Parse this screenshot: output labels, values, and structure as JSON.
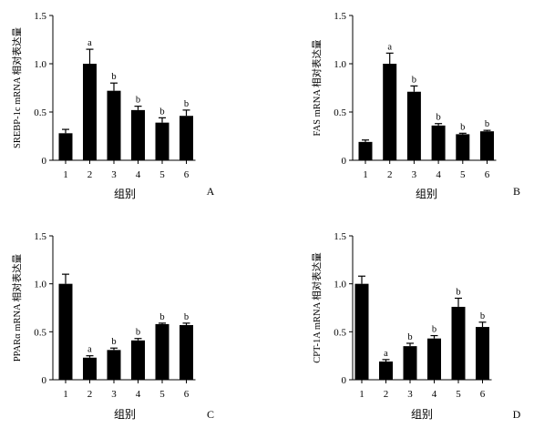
{
  "chart_data": [
    {
      "type": "bar",
      "panel_label": "A",
      "categories": [
        "1",
        "2",
        "3",
        "4",
        "5",
        "6"
      ],
      "values": [
        0.28,
        1.0,
        0.72,
        0.52,
        0.39,
        0.46
      ],
      "errors": [
        0.04,
        0.15,
        0.08,
        0.04,
        0.05,
        0.06
      ],
      "annotations": [
        "",
        "a",
        "b",
        "b",
        "b",
        "b"
      ],
      "ylabel": "SREBP-1c mRNA 相对表达量",
      "xlabel": "组别",
      "ylim": [
        0,
        1.5
      ],
      "yticks": [
        "0",
        "0.5",
        "1.0",
        "1.5"
      ],
      "grid": false
    },
    {
      "type": "bar",
      "panel_label": "B",
      "categories": [
        "1",
        "2",
        "3",
        "4",
        "5",
        "6"
      ],
      "values": [
        0.19,
        1.0,
        0.71,
        0.36,
        0.27,
        0.3
      ],
      "errors": [
        0.02,
        0.11,
        0.06,
        0.02,
        0.01,
        0.01
      ],
      "annotations": [
        "",
        "a",
        "b",
        "b",
        "b",
        "b"
      ],
      "ylabel": "FAS mRNA 相对表达量",
      "xlabel": "组别",
      "ylim": [
        0,
        1.5
      ],
      "yticks": [
        "0",
        "0.5",
        "1.0",
        "1.5"
      ],
      "grid": false
    },
    {
      "type": "bar",
      "panel_label": "C",
      "categories": [
        "1",
        "2",
        "3",
        "4",
        "5",
        "6"
      ],
      "values": [
        1.0,
        0.23,
        0.31,
        0.41,
        0.58,
        0.57
      ],
      "errors": [
        0.1,
        0.02,
        0.02,
        0.02,
        0.01,
        0.02
      ],
      "annotations": [
        "",
        "a",
        "b",
        "b",
        "b",
        "b"
      ],
      "ylabel": "PPARα mRNA 相对表达量",
      "xlabel": "组别",
      "ylim": [
        0,
        1.5
      ],
      "yticks": [
        "0",
        "0.5",
        "1.0",
        "1.5"
      ],
      "grid": false
    },
    {
      "type": "bar",
      "panel_label": "D",
      "categories": [
        "1",
        "2",
        "3",
        "4",
        "5",
        "6"
      ],
      "values": [
        1.0,
        0.19,
        0.35,
        0.43,
        0.76,
        0.55
      ],
      "errors": [
        0.08,
        0.02,
        0.03,
        0.03,
        0.09,
        0.05
      ],
      "annotations": [
        "",
        "a",
        "b",
        "b",
        "b",
        "b"
      ],
      "ylabel": "CPT-1A mRNA 相对表达量",
      "xlabel": "组别",
      "ylim": [
        0,
        1.5
      ],
      "yticks": [
        "0",
        "0.5",
        "1.0",
        "1.5"
      ],
      "grid": false
    }
  ]
}
